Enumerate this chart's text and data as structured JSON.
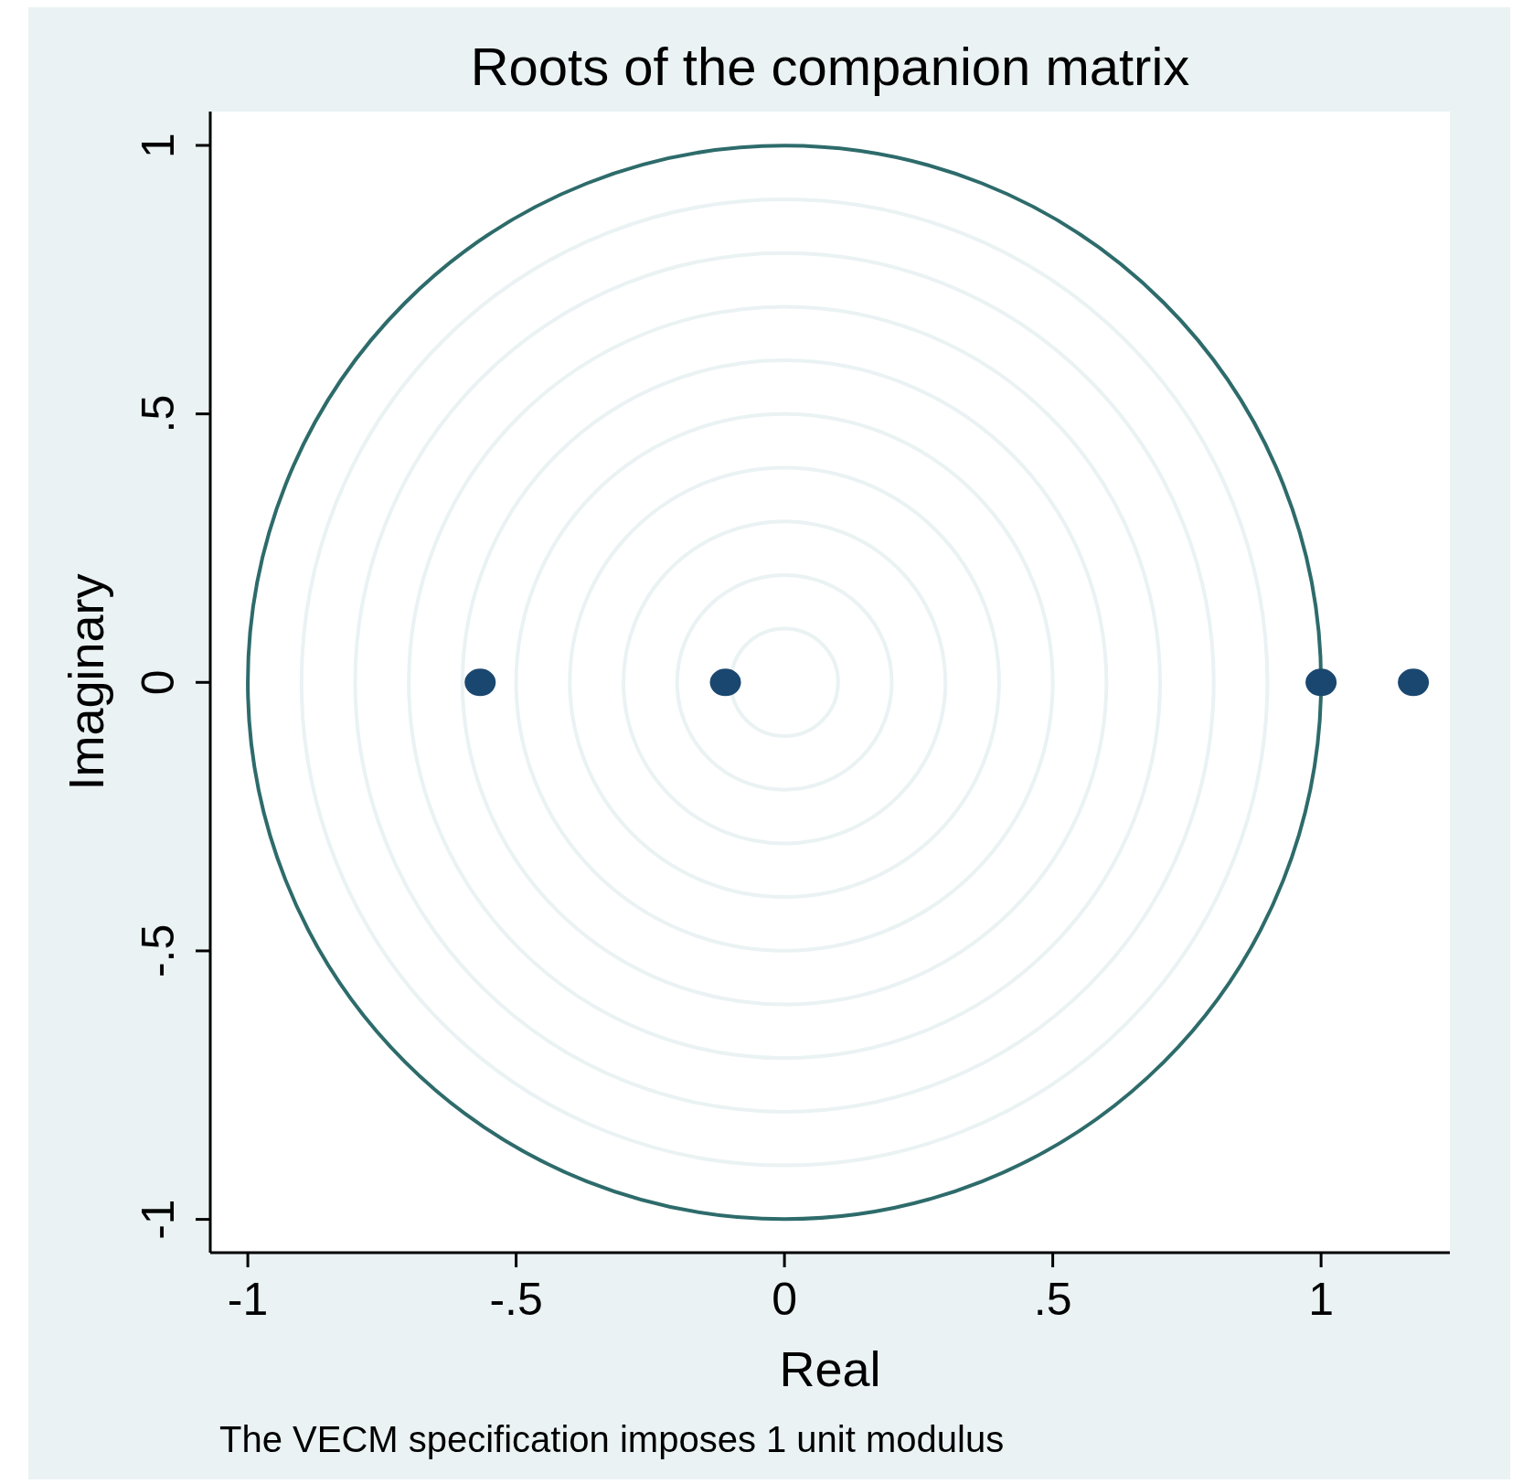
{
  "chart_data": {
    "type": "scatter",
    "title": "Roots of the companion matrix",
    "xlabel": "Real",
    "ylabel": "Imaginary",
    "annotations": [
      "The VECM specification imposes 1 unit modulus"
    ],
    "xlim": [
      -1.07,
      1.24
    ],
    "ylim": [
      -1.062,
      1.063
    ],
    "xticks": [
      {
        "value": -1,
        "label": "-1"
      },
      {
        "value": -0.5,
        "label": "-.5"
      },
      0,
      {
        "value": 0.5,
        "label": ".5"
      },
      1
    ],
    "yticks": [
      {
        "value": -1,
        "label": "-1"
      },
      {
        "value": -0.5,
        "label": "-.5"
      },
      0,
      {
        "value": 0.5,
        "label": ".5"
      },
      1
    ],
    "grid": false,
    "series": [
      {
        "type": "scatter",
        "color": "#1a476f",
        "marker": "circle",
        "x": [
          -0.567,
          -0.11,
          1.0,
          1.172
        ],
        "values": [
          0,
          0,
          0,
          0
        ]
      }
    ]
  }
}
